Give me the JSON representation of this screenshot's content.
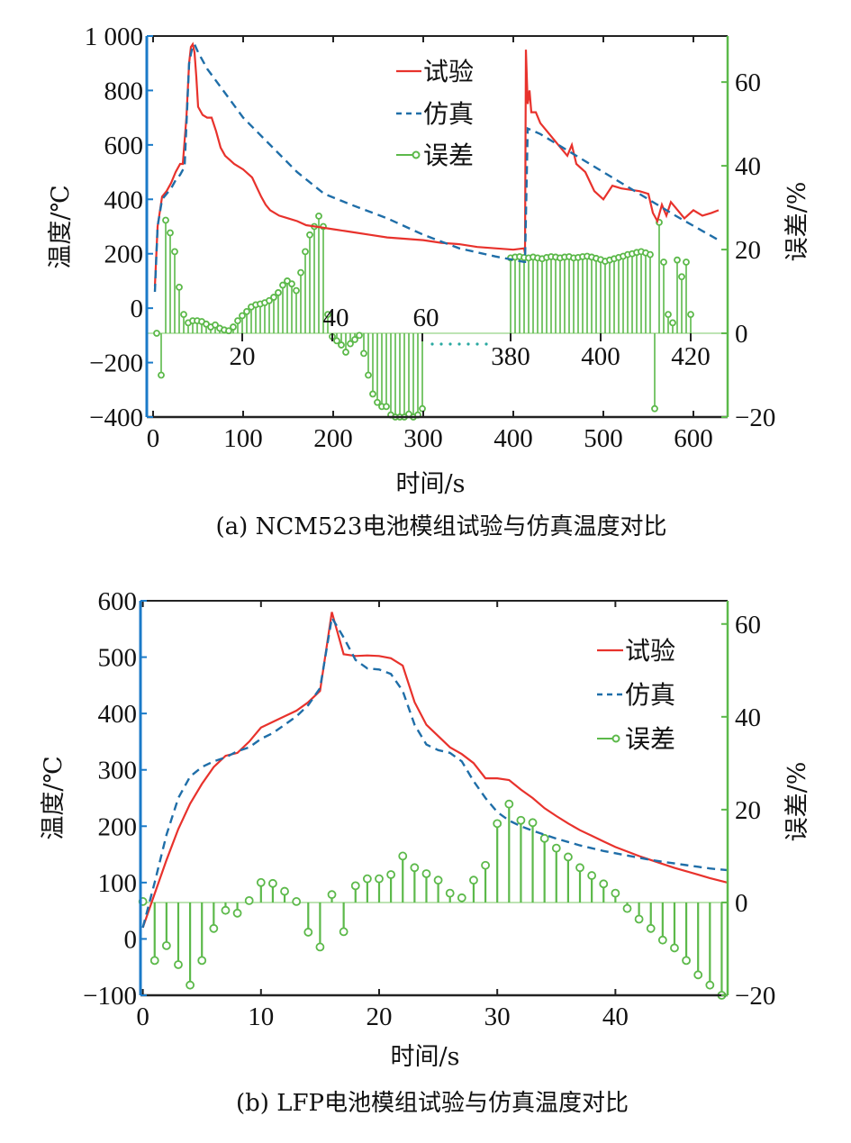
{
  "colors": {
    "experiment": "#e8322c",
    "simulation": "#1f6ea8",
    "error": "#5cb94a",
    "left_axis": "#1a7ac8",
    "right_axis": "#5cb94a",
    "frame": "#222222"
  },
  "chart_data": [
    {
      "type": "line+stem",
      "panel": "a",
      "caption": "(a) NCM523电池模组试验与仿真温度对比",
      "xlabel": "时间/s",
      "ylabel": "温度/℃",
      "ylabel2": "误差/%",
      "xlim": [
        -7,
        638
      ],
      "ylim": [
        -400,
        1000
      ],
      "y2lim": [
        -20,
        71
      ],
      "xticks": [
        0,
        100,
        200,
        300,
        400,
        500,
        600
      ],
      "xtick_labels": [
        "0",
        "100",
        "200",
        "300",
        "400",
        "500",
        "600"
      ],
      "yticks": [
        -400,
        -200,
        0,
        200,
        400,
        600,
        800,
        1000
      ],
      "ytick_labels": [
        "−400",
        "−200",
        "0",
        "200",
        "400",
        "600",
        "800",
        "1 000"
      ],
      "y2ticks": [
        -20,
        0,
        20,
        40,
        60
      ],
      "y2tick_labels": [
        "−20",
        "0",
        "20",
        "40",
        "60"
      ],
      "stem_axis_ticks": [
        20,
        40,
        60,
        380,
        400,
        420
      ],
      "stem_axis_tick_labels": [
        "20",
        "40",
        "60",
        "380",
        "400",
        "420"
      ],
      "legend": [
        "试验",
        "仿真",
        "误差"
      ],
      "legend_position": "top-center",
      "series": [
        {
          "name": "试验",
          "style": "solid",
          "x": [
            2,
            5,
            10,
            15,
            20,
            25,
            30,
            33,
            37,
            40,
            42,
            44,
            46,
            48,
            50,
            55,
            60,
            65,
            70,
            75,
            80,
            90,
            100,
            110,
            120,
            125,
            130,
            140,
            150,
            160,
            170,
            180,
            200,
            220,
            240,
            260,
            280,
            300,
            320,
            340,
            360,
            380,
            400,
            412,
            413,
            414,
            416,
            418,
            420,
            425,
            430,
            440,
            450,
            460,
            465,
            470,
            480,
            490,
            500,
            510,
            520,
            540,
            550,
            555,
            560,
            565,
            570,
            575,
            580,
            590,
            600,
            610,
            620,
            628
          ],
          "y": [
            80,
            300,
            410,
            430,
            460,
            500,
            530,
            530,
            700,
            900,
            960,
            970,
            940,
            850,
            740,
            710,
            700,
            700,
            650,
            590,
            560,
            530,
            510,
            480,
            410,
            380,
            360,
            340,
            330,
            320,
            305,
            300,
            290,
            280,
            270,
            260,
            255,
            250,
            240,
            235,
            225,
            220,
            215,
            220,
            200,
            950,
            750,
            800,
            720,
            720,
            680,
            640,
            600,
            560,
            600,
            530,
            500,
            430,
            400,
            450,
            440,
            430,
            420,
            350,
            320,
            380,
            340,
            390,
            370,
            330,
            360,
            340,
            350,
            360
          ]
        },
        {
          "name": "仿真",
          "style": "dashed",
          "x": [
            2,
            5,
            10,
            15,
            20,
            25,
            30,
            35,
            40,
            43,
            46,
            50,
            60,
            80,
            100,
            130,
            160,
            190,
            220,
            260,
            300,
            340,
            380,
            412,
            413,
            416,
            430,
            460,
            500,
            540,
            580,
            628
          ],
          "y": [
            60,
            300,
            400,
            420,
            440,
            470,
            490,
            520,
            900,
            950,
            970,
            940,
            880,
            790,
            700,
            600,
            500,
            420,
            380,
            330,
            270,
            220,
            190,
            170,
            170,
            660,
            640,
            580,
            500,
            420,
            340,
            250
          ]
        },
        {
          "name": "误差",
          "style": "stem",
          "x": [
            1,
            2,
            3,
            4,
            5,
            6,
            7,
            8,
            9,
            10,
            11,
            12,
            13,
            14,
            15,
            16,
            17,
            18,
            19,
            20,
            21,
            22,
            23,
            24,
            25,
            26,
            27,
            28,
            29,
            30,
            31,
            32,
            33,
            34,
            35,
            36,
            37,
            38,
            39,
            40,
            41,
            42,
            43,
            44,
            45,
            46,
            47,
            48,
            49,
            50,
            51,
            52,
            53,
            54,
            55,
            56,
            57,
            58,
            59,
            60,
            380,
            381,
            382,
            383,
            384,
            385,
            386,
            387,
            388,
            389,
            390,
            391,
            392,
            393,
            394,
            395,
            396,
            397,
            398,
            399,
            400,
            401,
            402,
            403,
            404,
            405,
            406,
            407,
            408,
            409,
            410,
            411,
            412,
            413,
            414,
            415,
            416,
            417,
            418,
            419,
            420
          ],
          "y": [
            0,
            -10,
            27,
            24,
            19.5,
            11,
            4.5,
            2.5,
            3,
            3,
            2.8,
            2.2,
            1.5,
            2,
            1.2,
            0.8,
            0.6,
            1.5,
            3,
            4.2,
            5.2,
            6.3,
            6.8,
            7,
            7.3,
            7.8,
            8.6,
            9.7,
            11.5,
            12.5,
            11.8,
            10.2,
            14.5,
            19.5,
            23.5,
            25.5,
            28,
            25.5,
            4.5,
            -0.8,
            -1.8,
            -2.8,
            -4.5,
            -2.5,
            -1.5,
            -0.5,
            -4.8,
            -10,
            -14.5,
            -16.5,
            -17.5,
            -17.5,
            -19.5,
            -20.2,
            -21,
            -20.2,
            -19.3,
            -20,
            -19.5,
            -18,
            18,
            18.2,
            18.3,
            18.1,
            18,
            18.2,
            18,
            17.8,
            18.1,
            18.3,
            18.2,
            18,
            18.2,
            18.3,
            18,
            18.1,
            18.3,
            18.4,
            18.2,
            17.9,
            17.6,
            17.2,
            17.5,
            17.8,
            18.1,
            18.4,
            18.8,
            19,
            19.3,
            19.5,
            19.2,
            18.8,
            -18,
            26.5,
            17,
            4.5,
            2.5,
            17.5,
            13.5,
            17,
            4.5
          ]
        }
      ]
    },
    {
      "type": "line+stem",
      "panel": "b",
      "caption": "(b) LFP电池模组试验与仿真温度对比",
      "xlabel": "时间/s",
      "ylabel": "温度/℃",
      "ylabel2": "误差/%",
      "xlim": [
        -0.2,
        49.5
      ],
      "ylim": [
        -100,
        600
      ],
      "y2lim": [
        -20,
        65
      ],
      "xticks": [
        0,
        10,
        20,
        30,
        40
      ],
      "xtick_labels": [
        "0",
        "10",
        "20",
        "30",
        "40"
      ],
      "yticks": [
        -100,
        0,
        100,
        200,
        300,
        400,
        500,
        600
      ],
      "ytick_labels": [
        "−100",
        "0",
        "100",
        "200",
        "300",
        "400",
        "500",
        "600"
      ],
      "y2ticks": [
        -20,
        0,
        20,
        40,
        60
      ],
      "y2tick_labels": [
        "−20",
        "0",
        "20",
        "40",
        "60"
      ],
      "legend": [
        "试验",
        "仿真",
        "误差"
      ],
      "legend_position": "top-right",
      "series": [
        {
          "name": "试验",
          "style": "solid",
          "x": [
            0,
            1,
            2,
            3,
            4,
            5,
            6,
            7,
            8,
            9,
            10,
            11,
            12,
            13,
            14,
            15,
            16,
            17,
            18,
            19,
            20,
            21,
            22,
            23,
            24,
            25,
            26,
            27,
            28,
            29,
            30,
            31,
            32,
            33,
            34,
            35,
            36,
            37,
            38,
            39,
            40,
            41,
            42,
            43,
            44,
            45,
            46,
            47,
            48,
            49.5
          ],
          "y": [
            20,
            80,
            140,
            195,
            240,
            275,
            305,
            325,
            330,
            350,
            375,
            385,
            395,
            405,
            420,
            440,
            580,
            505,
            502,
            503,
            502,
            498,
            485,
            420,
            380,
            360,
            340,
            328,
            312,
            285,
            285,
            282,
            265,
            250,
            232,
            218,
            205,
            193,
            183,
            173,
            163,
            155,
            147,
            140,
            133,
            126,
            120,
            114,
            108,
            100
          ]
        },
        {
          "name": "仿真",
          "style": "dashed",
          "x": [
            0,
            1,
            2,
            3,
            4,
            5,
            6,
            7,
            8,
            9,
            10,
            11,
            12,
            13,
            14,
            15,
            16,
            17,
            18,
            19,
            20,
            21,
            22,
            23,
            24,
            25,
            26,
            27,
            28,
            29,
            30,
            31,
            32,
            33,
            34,
            35,
            36,
            37,
            38,
            39,
            40,
            41,
            42,
            43,
            44,
            45,
            46,
            47,
            48,
            49.5
          ],
          "y": [
            20,
            100,
            185,
            250,
            288,
            305,
            315,
            322,
            333,
            340,
            355,
            365,
            380,
            395,
            415,
            445,
            570,
            535,
            495,
            480,
            478,
            470,
            440,
            380,
            345,
            335,
            330,
            315,
            280,
            250,
            225,
            210,
            200,
            192,
            185,
            178,
            172,
            166,
            161,
            156,
            152,
            148,
            144,
            140,
            137,
            134,
            131,
            128,
            125,
            122
          ]
        },
        {
          "name": "误差",
          "style": "stem",
          "x": [
            0,
            1,
            2,
            3,
            4,
            5,
            6,
            7,
            8,
            9,
            10,
            11,
            12,
            13,
            14,
            15,
            16,
            17,
            18,
            19,
            20,
            21,
            22,
            23,
            24,
            25,
            26,
            27,
            28,
            29,
            30,
            31,
            32,
            33,
            34,
            35,
            36,
            37,
            38,
            39,
            40,
            41,
            42,
            43,
            44,
            45,
            46,
            47,
            48,
            49
          ],
          "y": [
            0.2,
            -12.5,
            -9.3,
            -13.4,
            -17.8,
            -12.5,
            -5.6,
            -1.7,
            -2.3,
            0.4,
            4.3,
            4.1,
            2.4,
            0.2,
            -6.4,
            -9.6,
            1.7,
            -6.3,
            3.6,
            5.1,
            5.1,
            6,
            10,
            7.5,
            6.2,
            4.8,
            2,
            1,
            4.8,
            8,
            17,
            21.2,
            17.7,
            17.2,
            13.8,
            11.7,
            9.8,
            7.5,
            5.8,
            4,
            2,
            -1.3,
            -3.6,
            -5.6,
            -8.1,
            -9.8,
            -12.5,
            -15.6,
            -17.8,
            -20
          ]
        }
      ]
    }
  ]
}
